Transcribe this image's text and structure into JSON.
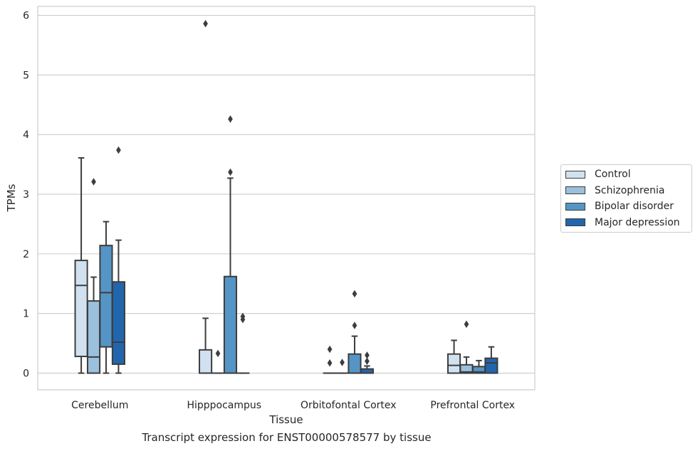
{
  "chart_data": {
    "type": "box",
    "ylabel": "TPMs",
    "xlabel": "Tissue",
    "ylim": [
      -0.28,
      6.15
    ],
    "yticks": [
      "0",
      "1",
      "2",
      "3",
      "4",
      "5",
      "6"
    ],
    "grid": "horizontal",
    "legend_position": "right",
    "categories": [
      "Cerebellum",
      "Hipppocampus",
      "Orbitofontal Cortex",
      "Prefrontal Cortex"
    ],
    "series": [
      {
        "name": "Control",
        "color": "#d1e1f0",
        "boxes": [
          {
            "whisker_low": 0,
            "q1": 0.28,
            "median": 1.47,
            "q3": 1.89,
            "whisker_high": 3.61,
            "outliers": []
          },
          {
            "whisker_low": 0,
            "q1": 0,
            "median": 0,
            "q3": 0.39,
            "whisker_high": 0.92,
            "outliers": [
              5.86
            ]
          },
          {
            "whisker_low": 0,
            "q1": 0,
            "median": 0,
            "q3": 0,
            "whisker_high": 0,
            "outliers": [
              0.4,
              0.17
            ]
          },
          {
            "whisker_low": 0,
            "q1": 0,
            "median": 0.13,
            "q3": 0.32,
            "whisker_high": 0.55,
            "outliers": []
          }
        ]
      },
      {
        "name": "Schizophrenia",
        "color": "#9ac0dd",
        "boxes": [
          {
            "whisker_low": 0,
            "q1": 0,
            "median": 0.27,
            "q3": 1.21,
            "whisker_high": 1.61,
            "outliers": [
              3.21
            ]
          },
          {
            "whisker_low": 0,
            "q1": 0,
            "median": 0,
            "q3": 0,
            "whisker_high": 0,
            "outliers": [
              0.33
            ]
          },
          {
            "whisker_low": 0,
            "q1": 0,
            "median": 0,
            "q3": 0,
            "whisker_high": 0,
            "outliers": [
              0.18
            ]
          },
          {
            "whisker_low": 0,
            "q1": 0,
            "median": 0.02,
            "q3": 0.14,
            "whisker_high": 0.27,
            "outliers": [
              0.82
            ]
          }
        ]
      },
      {
        "name": "Bipolar disorder",
        "color": "#5595c6",
        "boxes": [
          {
            "whisker_low": 0,
            "q1": 0.44,
            "median": 1.35,
            "q3": 2.14,
            "whisker_high": 2.54,
            "outliers": []
          },
          {
            "whisker_low": 0,
            "q1": 0,
            "median": 0,
            "q3": 1.62,
            "whisker_high": 3.27,
            "outliers": [
              4.26,
              3.37
            ]
          },
          {
            "whisker_low": 0,
            "q1": 0,
            "median": 0,
            "q3": 0.32,
            "whisker_high": 0.62,
            "outliers": [
              1.33,
              0.8
            ]
          },
          {
            "whisker_low": 0,
            "q1": 0,
            "median": 0.02,
            "q3": 0.11,
            "whisker_high": 0.21,
            "outliers": []
          }
        ]
      },
      {
        "name": "Major depression",
        "color": "#2166ac",
        "boxes": [
          {
            "whisker_low": 0,
            "q1": 0.15,
            "median": 0.52,
            "q3": 1.53,
            "whisker_high": 2.23,
            "outliers": [
              3.74
            ]
          },
          {
            "whisker_low": 0,
            "q1": 0,
            "median": 0,
            "q3": 0,
            "whisker_high": 0,
            "outliers": [
              0.95,
              0.9
            ]
          },
          {
            "whisker_low": 0,
            "q1": 0,
            "median": 0,
            "q3": 0.07,
            "whisker_high": 0.12,
            "outliers": [
              0.3,
              0.2
            ]
          },
          {
            "whisker_low": 0,
            "q1": 0,
            "median": 0.17,
            "q3": 0.25,
            "whisker_high": 0.44,
            "outliers": []
          }
        ]
      }
    ],
    "caption": "Transcript expression for ENST00000578577 by tissue"
  }
}
